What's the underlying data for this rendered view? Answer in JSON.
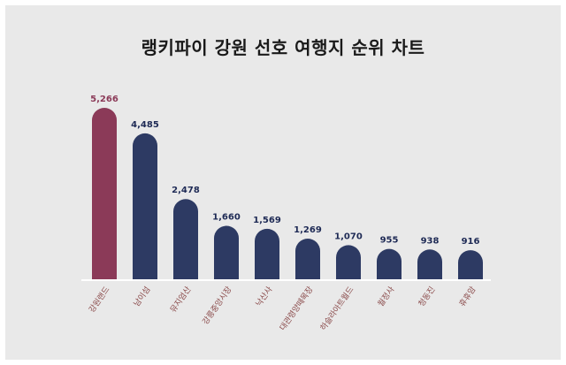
{
  "chart_data": {
    "type": "bar",
    "title": "랭키파이 강원 선호 여행지 순위 차트",
    "xlabel": "",
    "ylabel": "",
    "ylim": [
      0,
      5266
    ],
    "categories": [
      "강원랜드",
      "남이섬",
      "뮤지엄산",
      "강릉중앙시장",
      "낙산사",
      "대관령양떼목장",
      "하슬라아트월드",
      "월정사",
      "청동진",
      "휴휴암"
    ],
    "values": [
      5266,
      4485,
      2478,
      1660,
      1569,
      1269,
      1070,
      955,
      938,
      916
    ],
    "value_labels": [
      "5,266",
      "4,485",
      "2,478",
      "1,660",
      "1,569",
      "1,269",
      "1,070",
      "955",
      "938",
      "916"
    ],
    "colors": {
      "highlight": "#8b3a58",
      "bar": "#2d3a63",
      "highlight_label": "#8b3a58",
      "label": "#1e2a55",
      "axis": "#ffffff",
      "category_text": "#8a4a4a"
    }
  }
}
